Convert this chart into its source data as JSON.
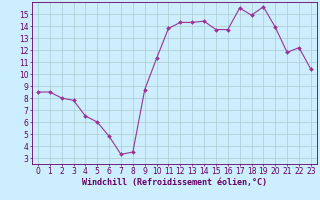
{
  "x": [
    0,
    1,
    2,
    3,
    4,
    5,
    6,
    7,
    8,
    9,
    10,
    11,
    12,
    13,
    14,
    15,
    16,
    17,
    18,
    19,
    20,
    21,
    22,
    23
  ],
  "y": [
    8.5,
    8.5,
    8.0,
    7.8,
    6.5,
    6.0,
    4.8,
    3.3,
    3.5,
    8.7,
    11.3,
    13.8,
    14.3,
    14.3,
    14.4,
    13.7,
    13.7,
    15.5,
    14.9,
    15.6,
    13.9,
    11.8,
    12.2,
    10.4
  ],
  "line_color": "#993399",
  "marker": "D",
  "marker_size": 2,
  "bg_color": "#cceeff",
  "grid_color": "#aacccc",
  "xlabel": "Windchill (Refroidissement éolien,°C)",
  "xlim": [
    -0.5,
    23.5
  ],
  "ylim": [
    2.5,
    16.0
  ],
  "xticks": [
    0,
    1,
    2,
    3,
    4,
    5,
    6,
    7,
    8,
    9,
    10,
    11,
    12,
    13,
    14,
    15,
    16,
    17,
    18,
    19,
    20,
    21,
    22,
    23
  ],
  "yticks": [
    3,
    4,
    5,
    6,
    7,
    8,
    9,
    10,
    11,
    12,
    13,
    14,
    15
  ],
  "axis_color": "#660066",
  "font_size": 5.5,
  "xlabel_font_size": 6.0
}
